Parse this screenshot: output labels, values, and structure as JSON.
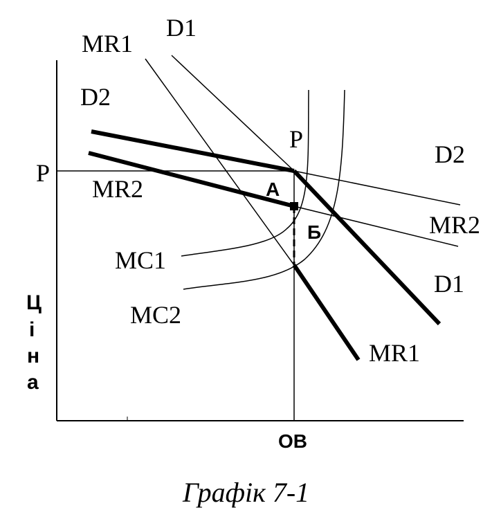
{
  "diagram": {
    "curve_labels": {
      "mr1_top": "MR1",
      "d1_top": "D1",
      "d2_left": "D2",
      "p_axis": "P",
      "p_point": "P",
      "d2_right": "D2",
      "mr2_left": "MR2",
      "mr2_right": "MR2",
      "mc1": "MC1",
      "mc2": "MC2",
      "d1_right": "D1",
      "mr1_bottom": "MR1",
      "point_a": "А",
      "point_b": "Б",
      "x_axis_label": "OB"
    },
    "y_axis_letters": [
      "Ц",
      "і",
      "н",
      "а"
    ],
    "caption": "Графік 7-1"
  }
}
